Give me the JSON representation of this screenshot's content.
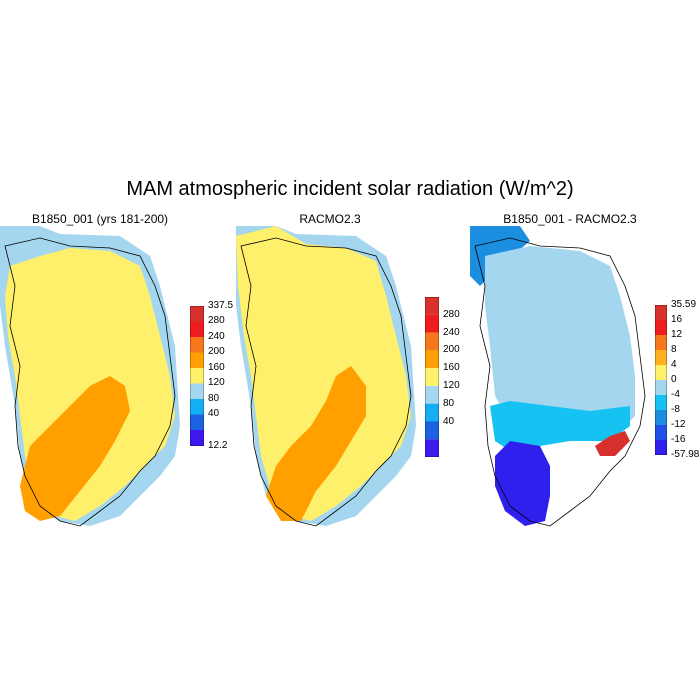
{
  "title": "MAM atmospheric incident solar radiation (W/m^2)",
  "panels": [
    {
      "title": "B1850_001 (yrs 181-200)",
      "colorbar": {
        "labels": [
          "337.5",
          "280",
          "240",
          "200",
          "160",
          "120",
          "80",
          "40",
          "12.2"
        ],
        "colors": [
          "#d7302d",
          "#ee1c1c",
          "#f7771c",
          "#ff9f00",
          "#fef06b",
          "#a5d6ef",
          "#15aef2",
          "#1b62e0",
          "#3f18f0"
        ]
      }
    },
    {
      "title": "RACMO2.3",
      "colorbar": {
        "labels": [
          "280",
          "240",
          "200",
          "160",
          "120",
          "80",
          "40"
        ],
        "colors": [
          "#d7302d",
          "#ee1c1c",
          "#f7771c",
          "#ff9f00",
          "#fef06b",
          "#a5d6ef",
          "#15aef2",
          "#1b62e0",
          "#3f18f0"
        ]
      }
    },
    {
      "title": "B1850_001 - RACMO2.3",
      "colorbar": {
        "labels": [
          "35.59",
          "16",
          "12",
          "8",
          "4",
          "0",
          "-4",
          "-8",
          "-12",
          "-16",
          "-57.98"
        ],
        "colors": [
          "#d7302d",
          "#ee1c1c",
          "#f7771c",
          "#ffb020",
          "#fef06b",
          "#a5d6ef",
          "#15c2f2",
          "#1b8ee0",
          "#2050e8",
          "#3020ee"
        ]
      }
    }
  ]
}
